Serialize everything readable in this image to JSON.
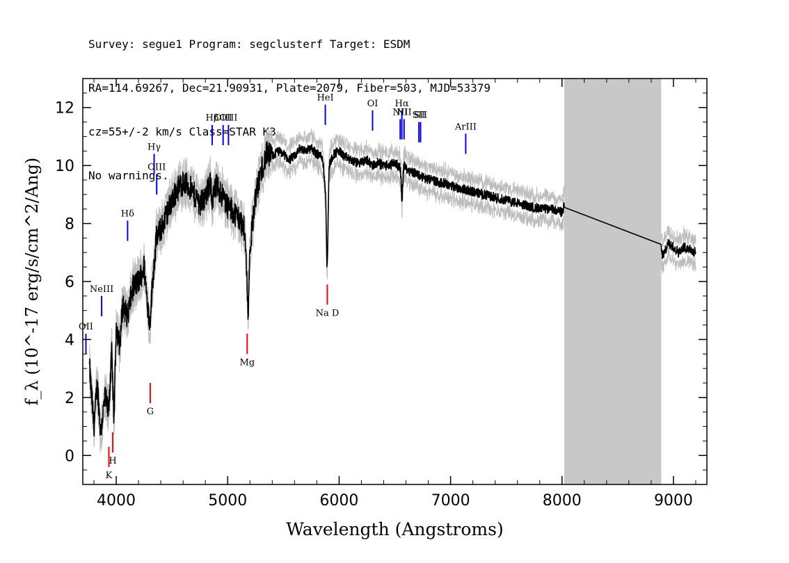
{
  "header": {
    "line1": "Survey: segue1 Program: segclusterf Target: ESDM",
    "line2": "RA=114.69267, Dec=21.90931, Plate=2079, Fiber=503, MJD=53379",
    "line3": "cz=55+/-2 km/s Class=STAR K3",
    "line4": "No warnings."
  },
  "chart_data": {
    "type": "line",
    "title": "",
    "xlabel": "Wavelength (Angstroms)",
    "ylabel": "f_λ (10^-17 erg/s/cm^2/Ang)",
    "xlim": [
      3700,
      9300
    ],
    "ylim": [
      -1,
      13
    ],
    "xticks": [
      4000,
      5000,
      6000,
      7000,
      8000,
      9000
    ],
    "yticks": [
      0,
      2,
      4,
      6,
      8,
      10,
      12
    ],
    "grid": false,
    "masked_region": [
      8020,
      8890
    ],
    "series": [
      {
        "color": "#000000",
        "x": [
          3760,
          3800,
          3830,
          3860,
          3900,
          3930,
          3960,
          3980,
          4000,
          4030,
          4060,
          4100,
          4150,
          4200,
          4250,
          4300,
          4330,
          4360,
          4400,
          4450,
          4500,
          4550,
          4600,
          4650,
          4700,
          4750,
          4800,
          4850,
          4860,
          4900,
          4950,
          5000,
          5050,
          5100,
          5150,
          5170,
          5183,
          5200,
          5250,
          5300,
          5350,
          5400,
          5450,
          5500,
          5550,
          5600,
          5650,
          5700,
          5750,
          5800,
          5850,
          5880,
          5890,
          5896,
          5910,
          5950,
          6000,
          6050,
          6100,
          6150,
          6200,
          6250,
          6300,
          6350,
          6400,
          6450,
          6500,
          6550,
          6563,
          6580,
          6600,
          6650,
          6700,
          6750,
          6800,
          6850,
          6900,
          6950,
          7000,
          7100,
          7200,
          7300,
          7400,
          7500,
          7600,
          7700,
          7800,
          7900,
          8000,
          8020,
          8890,
          8900,
          8920,
          8950,
          9000,
          9050,
          9100,
          9150,
          9200
        ],
        "y": [
          3.0,
          1.0,
          2.5,
          0.8,
          2.0,
          1.5,
          3.5,
          1.2,
          4.5,
          3.8,
          5.2,
          4.8,
          5.8,
          6.0,
          6.5,
          4.5,
          6.2,
          7.5,
          7.8,
          8.3,
          8.8,
          9.2,
          9.4,
          9.3,
          9.0,
          8.7,
          8.9,
          9.4,
          8.8,
          9.3,
          9.0,
          8.6,
          8.4,
          8.2,
          7.8,
          6.5,
          4.8,
          7.2,
          8.9,
          9.8,
          10.4,
          10.3,
          10.5,
          10.4,
          10.2,
          10.3,
          10.6,
          10.5,
          10.6,
          10.4,
          10.3,
          9.0,
          6.5,
          7.0,
          10.0,
          10.4,
          10.5,
          10.3,
          10.2,
          10.1,
          10.1,
          10.2,
          10.0,
          10.1,
          10.0,
          10.0,
          10.1,
          9.9,
          8.8,
          10.0,
          9.9,
          9.8,
          9.7,
          9.6,
          9.5,
          9.5,
          9.4,
          9.4,
          9.3,
          9.2,
          9.1,
          9.0,
          8.9,
          8.8,
          8.7,
          8.6,
          8.5,
          8.5,
          8.4,
          8.6,
          7.2,
          6.9,
          7.0,
          7.3,
          7.2,
          7.0,
          7.2,
          7.1,
          7.0
        ]
      }
    ],
    "line_markers": [
      {
        "label": "OII",
        "x": 3728,
        "y0": 3.5,
        "y1": 4.2,
        "color": "#0000ff"
      },
      {
        "label": "NeIII",
        "x": 3869,
        "y0": 4.8,
        "y1": 5.5,
        "color": "#0000ff"
      },
      {
        "label": "Hδ",
        "x": 4102,
        "y0": 7.4,
        "y1": 8.1,
        "color": "#0000ff"
      },
      {
        "label": "Hγ",
        "x": 4340,
        "y0": 9.7,
        "y1": 10.4,
        "color": "#0000ff"
      },
      {
        "label": "OIII",
        "x": 4363,
        "y0": 9.0,
        "y1": 9.7,
        "color": "#0000ff"
      },
      {
        "label": "Hβ",
        "x": 4861,
        "y0": 10.7,
        "y1": 11.4,
        "color": "#0000ff"
      },
      {
        "label": "OIII",
        "x": 4959,
        "y0": 10.7,
        "y1": 11.4,
        "color": "#0000ff"
      },
      {
        "label": "OIII",
        "x": 5007,
        "y0": 10.7,
        "y1": 11.4,
        "color": "#0000ff"
      },
      {
        "label": "HeI",
        "x": 5876,
        "y0": 11.4,
        "y1": 12.1,
        "color": "#0000ff"
      },
      {
        "label": "OI",
        "x": 6300,
        "y0": 11.2,
        "y1": 11.9,
        "color": "#0000ff"
      },
      {
        "label": "NII",
        "x": 6548,
        "y0": 10.9,
        "y1": 11.6,
        "color": "#0000ff"
      },
      {
        "label": "Hα",
        "x": 6563,
        "y0": 10.9,
        "y1": 11.9,
        "color": "#0000ff"
      },
      {
        "label": "NII",
        "x": 6583,
        "y0": 10.9,
        "y1": 11.6,
        "color": "#0000ff"
      },
      {
        "label": "SII",
        "x": 6716,
        "y0": 10.8,
        "y1": 11.5,
        "color": "#0000ff"
      },
      {
        "label": "SII",
        "x": 6731,
        "y0": 10.8,
        "y1": 11.5,
        "color": "#0000ff"
      },
      {
        "label": "ArIII",
        "x": 7136,
        "y0": 10.4,
        "y1": 11.1,
        "color": "#0000ff"
      },
      {
        "label": "K",
        "x": 3934,
        "y0": -0.4,
        "y1": 0.3,
        "color": "#ff0000"
      },
      {
        "label": "H",
        "x": 3969,
        "y0": 0.1,
        "y1": 0.8,
        "color": "#ff0000"
      },
      {
        "label": "G",
        "x": 4305,
        "y0": 1.8,
        "y1": 2.5,
        "color": "#ff0000"
      },
      {
        "label": "Mg",
        "x": 5175,
        "y0": 3.5,
        "y1": 4.2,
        "color": "#ff0000"
      },
      {
        "label": "Na D",
        "x": 5894,
        "y0": 5.2,
        "y1": 5.9,
        "color": "#ff0000"
      }
    ]
  }
}
